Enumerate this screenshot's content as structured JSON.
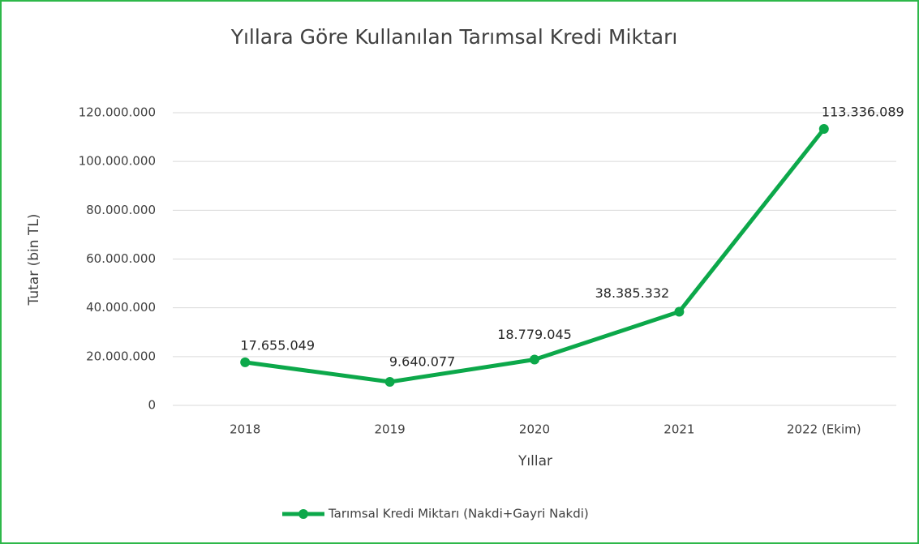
{
  "chart_data": {
    "type": "line",
    "title": "Yıllara Göre Kullanılan Tarımsal Kredi Miktarı",
    "x_label": "Yıllar",
    "y_label": "Tutar (bin TL)",
    "categories": [
      "2018",
      "2019",
      "2020",
      "2021",
      "2022 (Ekim)"
    ],
    "series": [
      {
        "name": "Tarımsal Kredi Miktarı (Nakdi+Gayri Nakdi)",
        "color": "#0ca84a",
        "values": [
          17655049,
          9640077,
          18779045,
          38385332,
          113336089
        ],
        "value_labels": [
          "17.655.049",
          "9.640.077",
          "18.779.045",
          "38.385.332",
          "113.336.089"
        ]
      }
    ],
    "ylim": [
      0,
      120000000
    ],
    "yticks": [
      0,
      {
        "value": 20000000,
        "label": "20.000.000"
      },
      {
        "value": 40000000,
        "label": "40.000.000"
      },
      {
        "value": 60000000,
        "label": "60.000.000"
      },
      {
        "value": 80000000,
        "label": "80.000.000"
      },
      {
        "value": 100000000,
        "label": "100.000.000"
      },
      {
        "value": 120000000,
        "label": "120.000.000"
      }
    ],
    "grid": true,
    "legend": "bottom"
  }
}
